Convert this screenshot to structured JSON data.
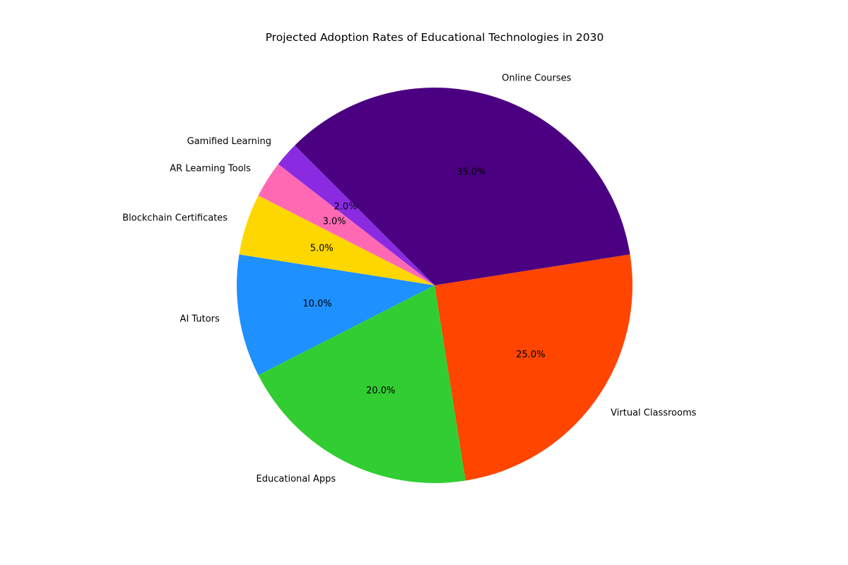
{
  "chart_data": {
    "type": "pie",
    "title": "Projected Adoption Rates of Educational Technologies in 2030",
    "categories": [
      "Online Courses",
      "Virtual Classrooms",
      "Educational Apps",
      "AI Tutors",
      "Blockchain Certificates",
      "AR Learning Tools",
      "Gamified Learning"
    ],
    "values": [
      35,
      25,
      20,
      10,
      5,
      3,
      2
    ],
    "value_labels": [
      "35.0%",
      "25.0%",
      "20.0%",
      "10.0%",
      "5.0%",
      "3.0%",
      "2.0%"
    ],
    "colors": [
      "#4B0082",
      "#FF4500",
      "#32CD32",
      "#1E90FF",
      "#FFD700",
      "#FF69B4",
      "#8A2BE2"
    ],
    "start_angle_deg": 135,
    "direction": "clockwise",
    "legend": "none"
  }
}
